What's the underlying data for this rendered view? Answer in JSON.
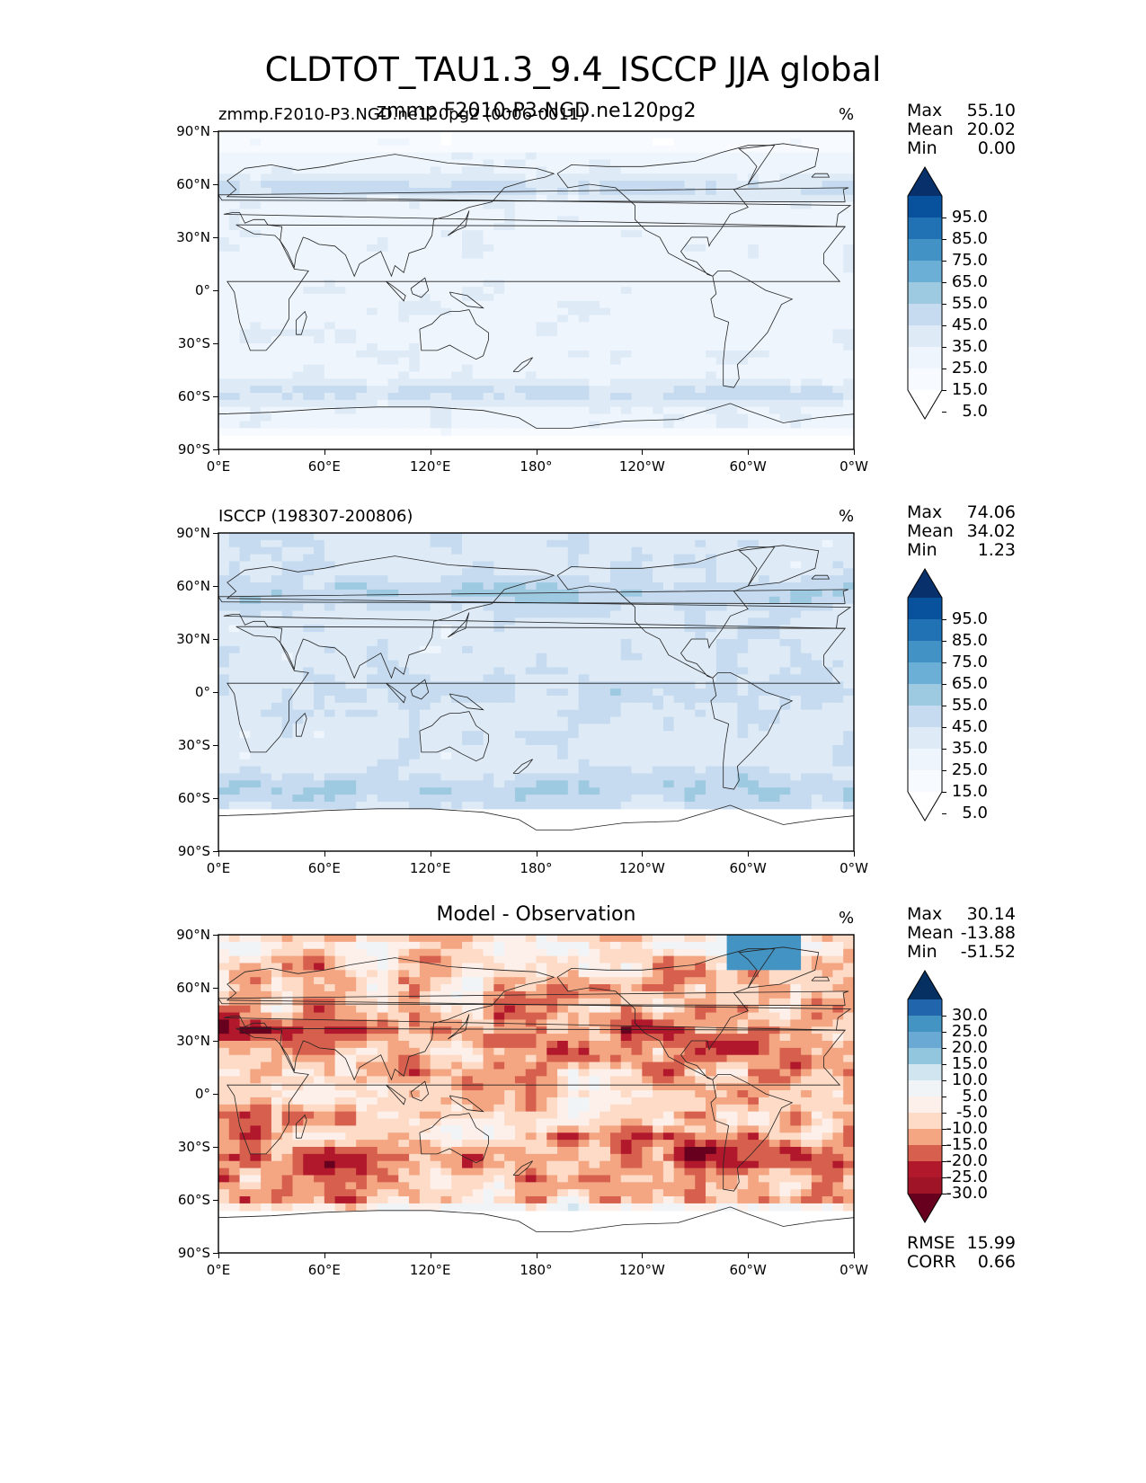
{
  "title": "CLDTOT_TAU1.3_9.4_ISCCP JJA global",
  "panels": [
    {
      "left_label": "zmmp.F2010-P3.NGD.ne120pg2 (0006-0011)",
      "center_label": "zmmp.F2010-P3-NGD.ne120pg2",
      "units": "%",
      "stats": [
        {
          "k": "Max",
          "v": "55.10"
        },
        {
          "k": "Mean",
          "v": "20.02"
        },
        {
          "k": "Min",
          "v": "0.00"
        }
      ],
      "colorbar": [
        "95.0",
        "85.0",
        "75.0",
        "65.0",
        "55.0",
        "45.0",
        "35.0",
        "25.0",
        "15.0",
        "5.0"
      ],
      "colors": [
        "#08306b",
        "#08519c",
        "#2171b5",
        "#4292c6",
        "#6baed6",
        "#9ecae1",
        "#c6dbef",
        "#deebf7",
        "#eef5fc",
        "#f7fbff",
        "#ffffff"
      ],
      "field": "model"
    },
    {
      "left_label": "ISCCP (198307-200806)",
      "center_label": "",
      "units": "%",
      "stats": [
        {
          "k": "Max",
          "v": "74.06"
        },
        {
          "k": "Mean",
          "v": "34.02"
        },
        {
          "k": "Min",
          "v": "1.23"
        }
      ],
      "colorbar": [
        "95.0",
        "85.0",
        "75.0",
        "65.0",
        "55.0",
        "45.0",
        "35.0",
        "25.0",
        "15.0",
        "5.0"
      ],
      "colors": [
        "#08306b",
        "#08519c",
        "#2171b5",
        "#4292c6",
        "#6baed6",
        "#9ecae1",
        "#c6dbef",
        "#deebf7",
        "#eef5fc",
        "#f7fbff",
        "#ffffff"
      ],
      "field": "obs"
    },
    {
      "left_label": "",
      "center_label": "Model - Observation",
      "units": "%",
      "stats": [
        {
          "k": "Max",
          "v": "30.14"
        },
        {
          "k": "Mean",
          "v": "-13.88"
        },
        {
          "k": "Min",
          "v": "-51.52"
        }
      ],
      "colorbar": [
        "30.0",
        "25.0",
        "20.0",
        "15.0",
        "10.0",
        "5.0",
        "-5.0",
        "-10.0",
        "-15.0",
        "-20.0",
        "-25.0",
        "-30.0"
      ],
      "colors": [
        "#053061",
        "#2166ac",
        "#4393c3",
        "#6aa9d3",
        "#92c5de",
        "#d1e5f0",
        "#f0f4f7",
        "#fdf0ea",
        "#fddbc7",
        "#f4a582",
        "#d6604d",
        "#b2182b",
        "#a01428",
        "#67001f"
      ],
      "field": "diff",
      "metrics": [
        {
          "k": "RMSE",
          "v": "15.99"
        },
        {
          "k": "CORR",
          "v": "0.66"
        }
      ]
    }
  ],
  "lat_ticks": [
    "90°N",
    "60°N",
    "30°N",
    "0°",
    "30°S",
    "60°S",
    "90°S"
  ],
  "lon_ticks": [
    "0°E",
    "60°E",
    "120°E",
    "180°",
    "120°W",
    "60°W",
    "0°W"
  ]
}
